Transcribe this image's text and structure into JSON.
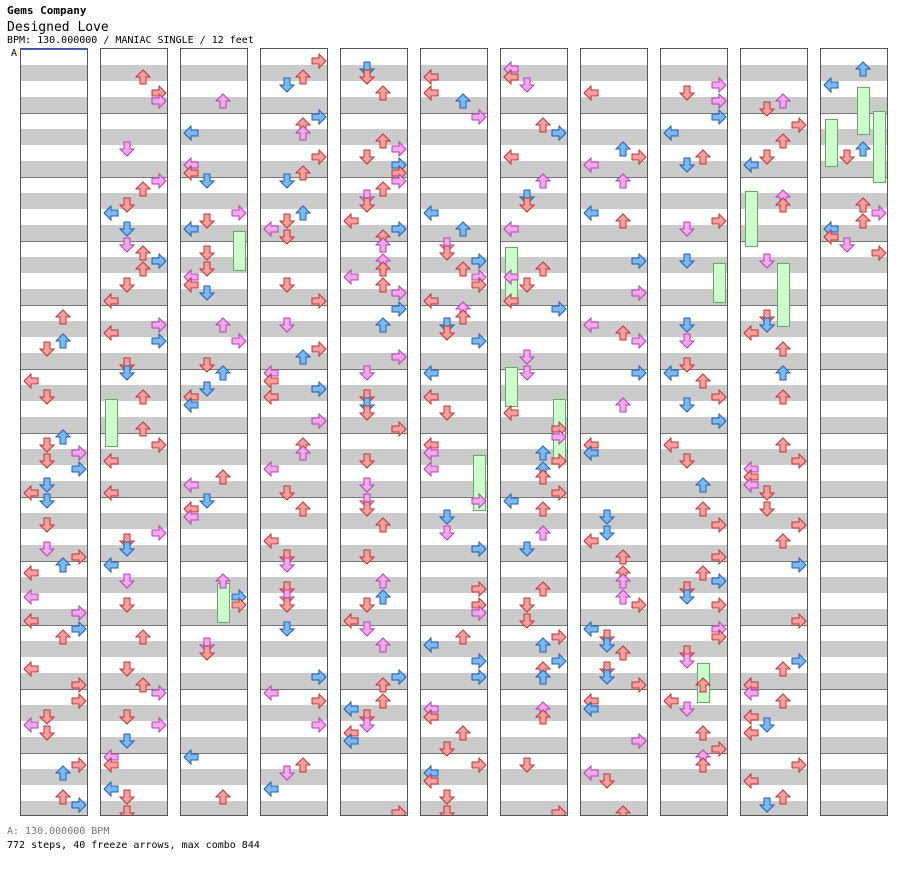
{
  "header": {
    "artist": "Gems Company",
    "title": "Designed Love",
    "meta": "BPM: 130.000000 / MANIAC SINGLE / 12 feet"
  },
  "bpm_marker": "A",
  "footer": {
    "bpm": "A: 130.000000 BPM",
    "stats": "772 steps, 40 freeze arrows, max combo 844"
  },
  "colors": {
    "arrow_red": "#f4a0a0",
    "arrow_blue": "#6ab0f0",
    "arrow_pink": "#f6a8f0",
    "freeze": "#ccffcc",
    "stripe": "#cbcbcb"
  },
  "chart": {
    "columns": 11,
    "measures_per_column": 12,
    "total_measures": 132,
    "panels": [
      "left",
      "down",
      "up",
      "right"
    ]
  }
}
